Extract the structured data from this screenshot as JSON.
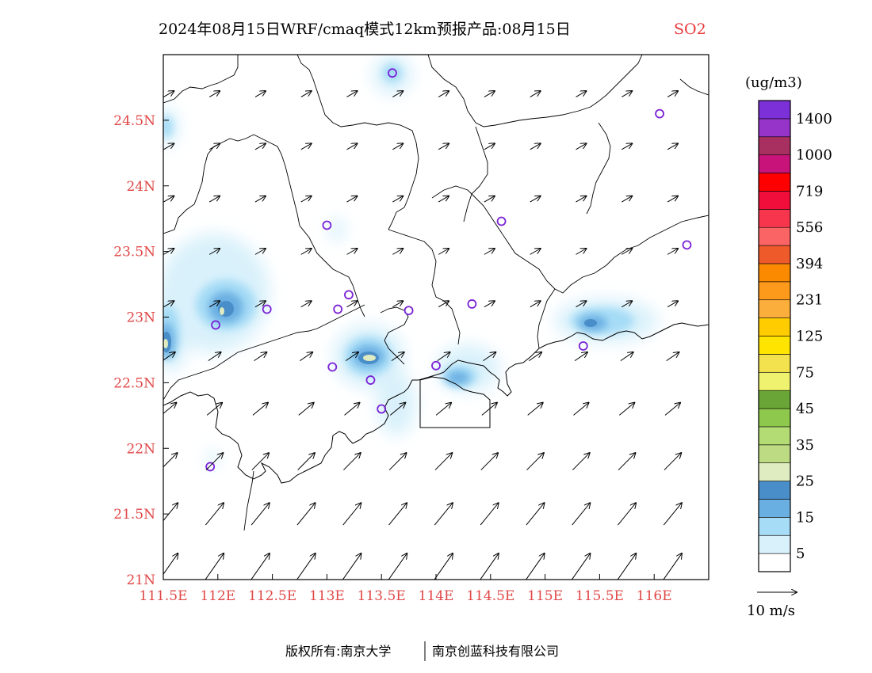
{
  "title": {
    "main": "2024年08月15日WRF/cmaq模式12km预报产品:08月15日",
    "variable": "SO2"
  },
  "map": {
    "lon_range": [
      111.5,
      116.5
    ],
    "lat_range": [
      21.0,
      25.0
    ],
    "x_ticks": [
      {
        "value": 111.5,
        "label": "111.5E"
      },
      {
        "value": 112.0,
        "label": "112E"
      },
      {
        "value": 112.5,
        "label": "112.5E"
      },
      {
        "value": 113.0,
        "label": "113E"
      },
      {
        "value": 113.5,
        "label": "113.5E"
      },
      {
        "value": 114.0,
        "label": "114E"
      },
      {
        "value": 114.5,
        "label": "114.5E"
      },
      {
        "value": 115.0,
        "label": "115E"
      },
      {
        "value": 115.5,
        "label": "115.5E"
      },
      {
        "value": 116.0,
        "label": "116E"
      }
    ],
    "y_ticks": [
      {
        "value": 21.0,
        "label": "21N"
      },
      {
        "value": 21.5,
        "label": "21.5N"
      },
      {
        "value": 22.0,
        "label": "22N"
      },
      {
        "value": 22.5,
        "label": "22.5N"
      },
      {
        "value": 23.0,
        "label": "23N"
      },
      {
        "value": 23.5,
        "label": "23.5N"
      },
      {
        "value": 24.0,
        "label": "24N"
      },
      {
        "value": 24.5,
        "label": "24.5N"
      }
    ],
    "stations": [
      [
        113.6,
        24.86
      ],
      [
        116.05,
        24.55
      ],
      [
        114.6,
        23.73
      ],
      [
        116.3,
        23.55
      ],
      [
        113.0,
        23.7
      ],
      [
        112.45,
        23.06
      ],
      [
        113.1,
        23.06
      ],
      [
        113.2,
        23.17
      ],
      [
        113.75,
        23.05
      ],
      [
        114.33,
        23.1
      ],
      [
        111.98,
        22.94
      ],
      [
        113.05,
        22.62
      ],
      [
        113.4,
        22.52
      ],
      [
        114.0,
        22.63
      ],
      [
        113.5,
        22.3
      ],
      [
        115.35,
        22.78
      ],
      [
        111.93,
        21.86
      ]
    ],
    "hotspots": [
      {
        "lon": 113.42,
        "lat": 22.7,
        "peak": 30
      },
      {
        "lon": 111.98,
        "lat": 23.08,
        "peak": 30
      },
      {
        "lon": 111.5,
        "lat": 22.82,
        "peak": 30
      },
      {
        "lon": 115.37,
        "lat": 22.97,
        "peak": 20
      },
      {
        "lon": 114.08,
        "lat": 22.55,
        "peak": 18
      },
      {
        "lon": 111.52,
        "lat": 24.45,
        "peak": 18
      },
      {
        "lon": 113.6,
        "lat": 24.87,
        "peak": 10
      }
    ],
    "wind": {
      "north_direction_deg": 30,
      "south_direction_deg": 55,
      "north_speed_ms": 3,
      "south_speed_ms": 8
    }
  },
  "colorbar": {
    "unit": "(ug/m3)",
    "colors": [
      "#ffffff",
      "#d9f1fb",
      "#a6dcf6",
      "#6aafe2",
      "#4a8ec9",
      "#dfebc0",
      "#bcdb83",
      "#b4dc74",
      "#8ec84d",
      "#6aa637",
      "#eef26e",
      "#f3e14d",
      "#ffe400",
      "#ffcc00",
      "#fcae3c",
      "#fd9a1c",
      "#fb8a00",
      "#ef5a2b",
      "#fb6464",
      "#f7364d",
      "#f10e3a",
      "#ff0000",
      "#c8147a",
      "#a83060",
      "#9634c9",
      "#7c30d8"
    ],
    "labels": [
      "5",
      "15",
      "25",
      "35",
      "45",
      "75",
      "125",
      "231",
      "394",
      "556",
      "719",
      "1000",
      "1400"
    ]
  },
  "wind_legend": {
    "label": "10 m/s"
  },
  "footer": {
    "copyright": "版权所有:南京大学",
    "company": "南京创蓝科技有限公司"
  }
}
